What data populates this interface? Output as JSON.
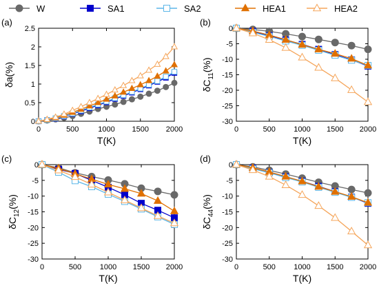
{
  "legend": [
    {
      "label": "W",
      "color": "#696969",
      "marker": "circle",
      "fill": "filled"
    },
    {
      "label": "SA1",
      "color": "#0000cc",
      "marker": "square",
      "fill": "filled"
    },
    {
      "label": "SA2",
      "color": "#5bb6e8",
      "marker": "square",
      "fill": "open"
    },
    {
      "label": "HEA1",
      "color": "#e07000",
      "marker": "triangle",
      "fill": "filled"
    },
    {
      "label": "HEA2",
      "color": "#f5a55a",
      "marker": "triangle",
      "fill": "open"
    }
  ],
  "chart_data": [
    {
      "type": "line",
      "panel_label": "(a)",
      "xlabel": "T(K)",
      "ylabel": "δa(%)",
      "xlim": [
        0,
        2000
      ],
      "ylim": [
        0,
        2.5
      ],
      "xticks": [
        "0",
        "500",
        "1000",
        "1500",
        "2000"
      ],
      "yticks": [
        "0",
        "0.5",
        "1",
        "1.5",
        "2",
        "2.5"
      ],
      "grid": false,
      "series": [
        {
          "name": "W",
          "x": [
            0,
            125,
            250,
            375,
            500,
            625,
            750,
            875,
            1000,
            1125,
            1250,
            1375,
            1500,
            1625,
            1750,
            1875,
            2000
          ],
          "values": [
            0,
            0.02,
            0.05,
            0.09,
            0.14,
            0.2,
            0.26,
            0.33,
            0.39,
            0.45,
            0.52,
            0.59,
            0.66,
            0.74,
            0.82,
            0.92,
            1.03
          ]
        },
        {
          "name": "SA1",
          "x": [
            0,
            125,
            250,
            375,
            500,
            625,
            750,
            875,
            1000,
            1125,
            1250,
            1375,
            1500,
            1625,
            1750,
            1875,
            2000
          ],
          "values": [
            0,
            0.03,
            0.07,
            0.13,
            0.2,
            0.27,
            0.35,
            0.43,
            0.51,
            0.6,
            0.68,
            0.77,
            0.86,
            0.96,
            1.06,
            1.17,
            1.3
          ]
        },
        {
          "name": "SA2",
          "x": [
            0,
            125,
            250,
            375,
            500,
            625,
            750,
            875,
            1000,
            1125,
            1250,
            1375,
            1500,
            1625,
            1750,
            1875,
            2000
          ],
          "values": [
            0,
            0.03,
            0.08,
            0.14,
            0.21,
            0.29,
            0.37,
            0.45,
            0.53,
            0.62,
            0.7,
            0.79,
            0.88,
            0.98,
            1.08,
            1.2,
            1.33
          ]
        },
        {
          "name": "HEA1",
          "x": [
            0,
            125,
            250,
            375,
            500,
            625,
            750,
            875,
            1000,
            1125,
            1250,
            1375,
            1500,
            1625,
            1750,
            1875,
            2000
          ],
          "values": [
            0,
            0.04,
            0.09,
            0.16,
            0.24,
            0.32,
            0.41,
            0.5,
            0.59,
            0.68,
            0.78,
            0.88,
            0.98,
            1.09,
            1.21,
            1.35,
            1.52
          ]
        },
        {
          "name": "HEA2",
          "x": [
            0,
            125,
            250,
            375,
            500,
            625,
            750,
            875,
            1000,
            1125,
            1250,
            1375,
            1500,
            1625,
            1750,
            1875,
            2000
          ],
          "values": [
            0,
            0.05,
            0.11,
            0.19,
            0.29,
            0.39,
            0.5,
            0.61,
            0.72,
            0.84,
            0.96,
            1.09,
            1.22,
            1.37,
            1.53,
            1.74,
            2.0
          ]
        }
      ]
    },
    {
      "type": "line",
      "panel_label": "(b)",
      "xlabel": "T(K)",
      "ylabel": "δC",
      "ylabel_sub": "11",
      "ylabel_suffix": "(%)",
      "xlim": [
        0,
        2000
      ],
      "ylim": [
        -30,
        0
      ],
      "xticks": [
        "0",
        "500",
        "1000",
        "1500",
        "2000"
      ],
      "yticks": [
        "0",
        "-5",
        "-10",
        "-15",
        "-20",
        "-25",
        "-30"
      ],
      "grid": false,
      "series": [
        {
          "name": "W",
          "x": [
            0,
            250,
            500,
            750,
            1000,
            1250,
            1500,
            1750,
            2000
          ],
          "values": [
            0,
            -0.4,
            -1.0,
            -1.8,
            -2.7,
            -3.6,
            -4.6,
            -5.6,
            -6.8
          ]
        },
        {
          "name": "SA1",
          "x": [
            0,
            250,
            500,
            750,
            1000,
            1250,
            1500,
            1750,
            2000
          ],
          "values": [
            0,
            -1.0,
            -2.4,
            -3.8,
            -5.2,
            -6.8,
            -8.5,
            -10.2,
            -12.2
          ]
        },
        {
          "name": "SA2",
          "x": [
            0,
            250,
            500,
            750,
            1000,
            1250,
            1500,
            1750,
            2000
          ],
          "values": [
            0,
            -1.3,
            -2.6,
            -4.1,
            -5.5,
            -7.1,
            -8.7,
            -10.3,
            -12.0
          ]
        },
        {
          "name": "HEA1",
          "x": [
            0,
            250,
            500,
            750,
            1000,
            1250,
            1500,
            1750,
            2000
          ],
          "values": [
            0,
            -0.9,
            -2.2,
            -3.7,
            -5.3,
            -6.8,
            -8.2,
            -9.8,
            -12.0
          ]
        },
        {
          "name": "HEA2",
          "x": [
            0,
            250,
            500,
            750,
            1000,
            1250,
            1500,
            1750,
            2000
          ],
          "values": [
            0,
            -1.6,
            -3.7,
            -6.3,
            -9.4,
            -12.7,
            -16.1,
            -19.9,
            -23.8
          ]
        }
      ]
    },
    {
      "type": "line",
      "panel_label": "(c)",
      "xlabel": "T(K)",
      "ylabel": "δC",
      "ylabel_sub": "12",
      "ylabel_suffix": "(%)",
      "xlim": [
        0,
        2000
      ],
      "ylim": [
        -30,
        0
      ],
      "xticks": [
        "0",
        "500",
        "1000",
        "1500",
        "2000"
      ],
      "yticks": [
        "0",
        "-5",
        "-10",
        "-15",
        "-20",
        "-25",
        "-30"
      ],
      "grid": false,
      "series": [
        {
          "name": "W",
          "x": [
            0,
            250,
            500,
            750,
            1000,
            1250,
            1500,
            1750,
            2000
          ],
          "values": [
            0,
            -1.0,
            -2.6,
            -3.8,
            -4.9,
            -6.1,
            -7.5,
            -8.5,
            -9.6
          ]
        },
        {
          "name": "SA1",
          "x": [
            0,
            250,
            500,
            750,
            1000,
            1250,
            1500,
            1750,
            2000
          ],
          "values": [
            0,
            -1.5,
            -2.8,
            -5.0,
            -7.2,
            -9.6,
            -12.3,
            -14.5,
            -16.9
          ]
        },
        {
          "name": "SA2",
          "x": [
            0,
            250,
            500,
            750,
            1000,
            1250,
            1500,
            1750,
            2000
          ],
          "values": [
            0,
            -2.4,
            -5.1,
            -7.0,
            -9.4,
            -11.7,
            -14.1,
            -16.6,
            -19.0
          ]
        },
        {
          "name": "HEA1",
          "x": [
            0,
            250,
            500,
            750,
            1000,
            1250,
            1500,
            1750,
            2000
          ],
          "values": [
            0,
            -1.2,
            -2.9,
            -4.6,
            -6.3,
            -7.7,
            -9.2,
            -11.5,
            -14.8
          ]
        },
        {
          "name": "HEA2",
          "x": [
            0,
            250,
            500,
            750,
            1000,
            1250,
            1500,
            1750,
            2000
          ],
          "values": [
            0,
            -1.8,
            -3.9,
            -6.3,
            -8.8,
            -11.3,
            -13.8,
            -16.3,
            -18.6
          ]
        }
      ]
    },
    {
      "type": "line",
      "panel_label": "(d)",
      "xlabel": "T(K)",
      "ylabel": "δC",
      "ylabel_sub": "44",
      "ylabel_suffix": "(%)",
      "xlim": [
        0,
        2000
      ],
      "ylim": [
        -30,
        0
      ],
      "xticks": [
        "0",
        "500",
        "1000",
        "1500",
        "2000"
      ],
      "yticks": [
        "0",
        "-5",
        "-10",
        "-15",
        "-20",
        "-25",
        "-30"
      ],
      "grid": false,
      "series": [
        {
          "name": "W",
          "x": [
            0,
            250,
            500,
            750,
            1000,
            1250,
            1500,
            1750,
            2000
          ],
          "values": [
            0,
            -0.7,
            -1.8,
            -3.0,
            -4.3,
            -5.6,
            -6.8,
            -7.9,
            -9.0
          ]
        },
        {
          "name": "SA1",
          "x": [
            0,
            250,
            500,
            750,
            1000,
            1250,
            1500,
            1750,
            2000
          ],
          "values": [
            0,
            -1.1,
            -2.5,
            -3.9,
            -5.3,
            -6.9,
            -8.6,
            -10.3,
            -12.3
          ]
        },
        {
          "name": "SA2",
          "x": [
            0,
            250,
            500,
            750,
            1000,
            1250,
            1500,
            1750,
            2000
          ],
          "values": [
            0,
            -1.3,
            -2.6,
            -4.1,
            -5.5,
            -7.2,
            -8.8,
            -10.4,
            -12.1
          ]
        },
        {
          "name": "HEA1",
          "x": [
            0,
            250,
            500,
            750,
            1000,
            1250,
            1500,
            1750,
            2000
          ],
          "values": [
            0,
            -1.0,
            -2.3,
            -3.8,
            -5.3,
            -7.0,
            -8.6,
            -10.2,
            -12.1
          ]
        },
        {
          "name": "HEA2",
          "x": [
            0,
            250,
            500,
            750,
            1000,
            1250,
            1500,
            1750,
            2000
          ],
          "values": [
            0,
            -1.7,
            -3.8,
            -6.5,
            -9.6,
            -13.1,
            -16.9,
            -21.2,
            -25.6
          ]
        }
      ]
    }
  ]
}
